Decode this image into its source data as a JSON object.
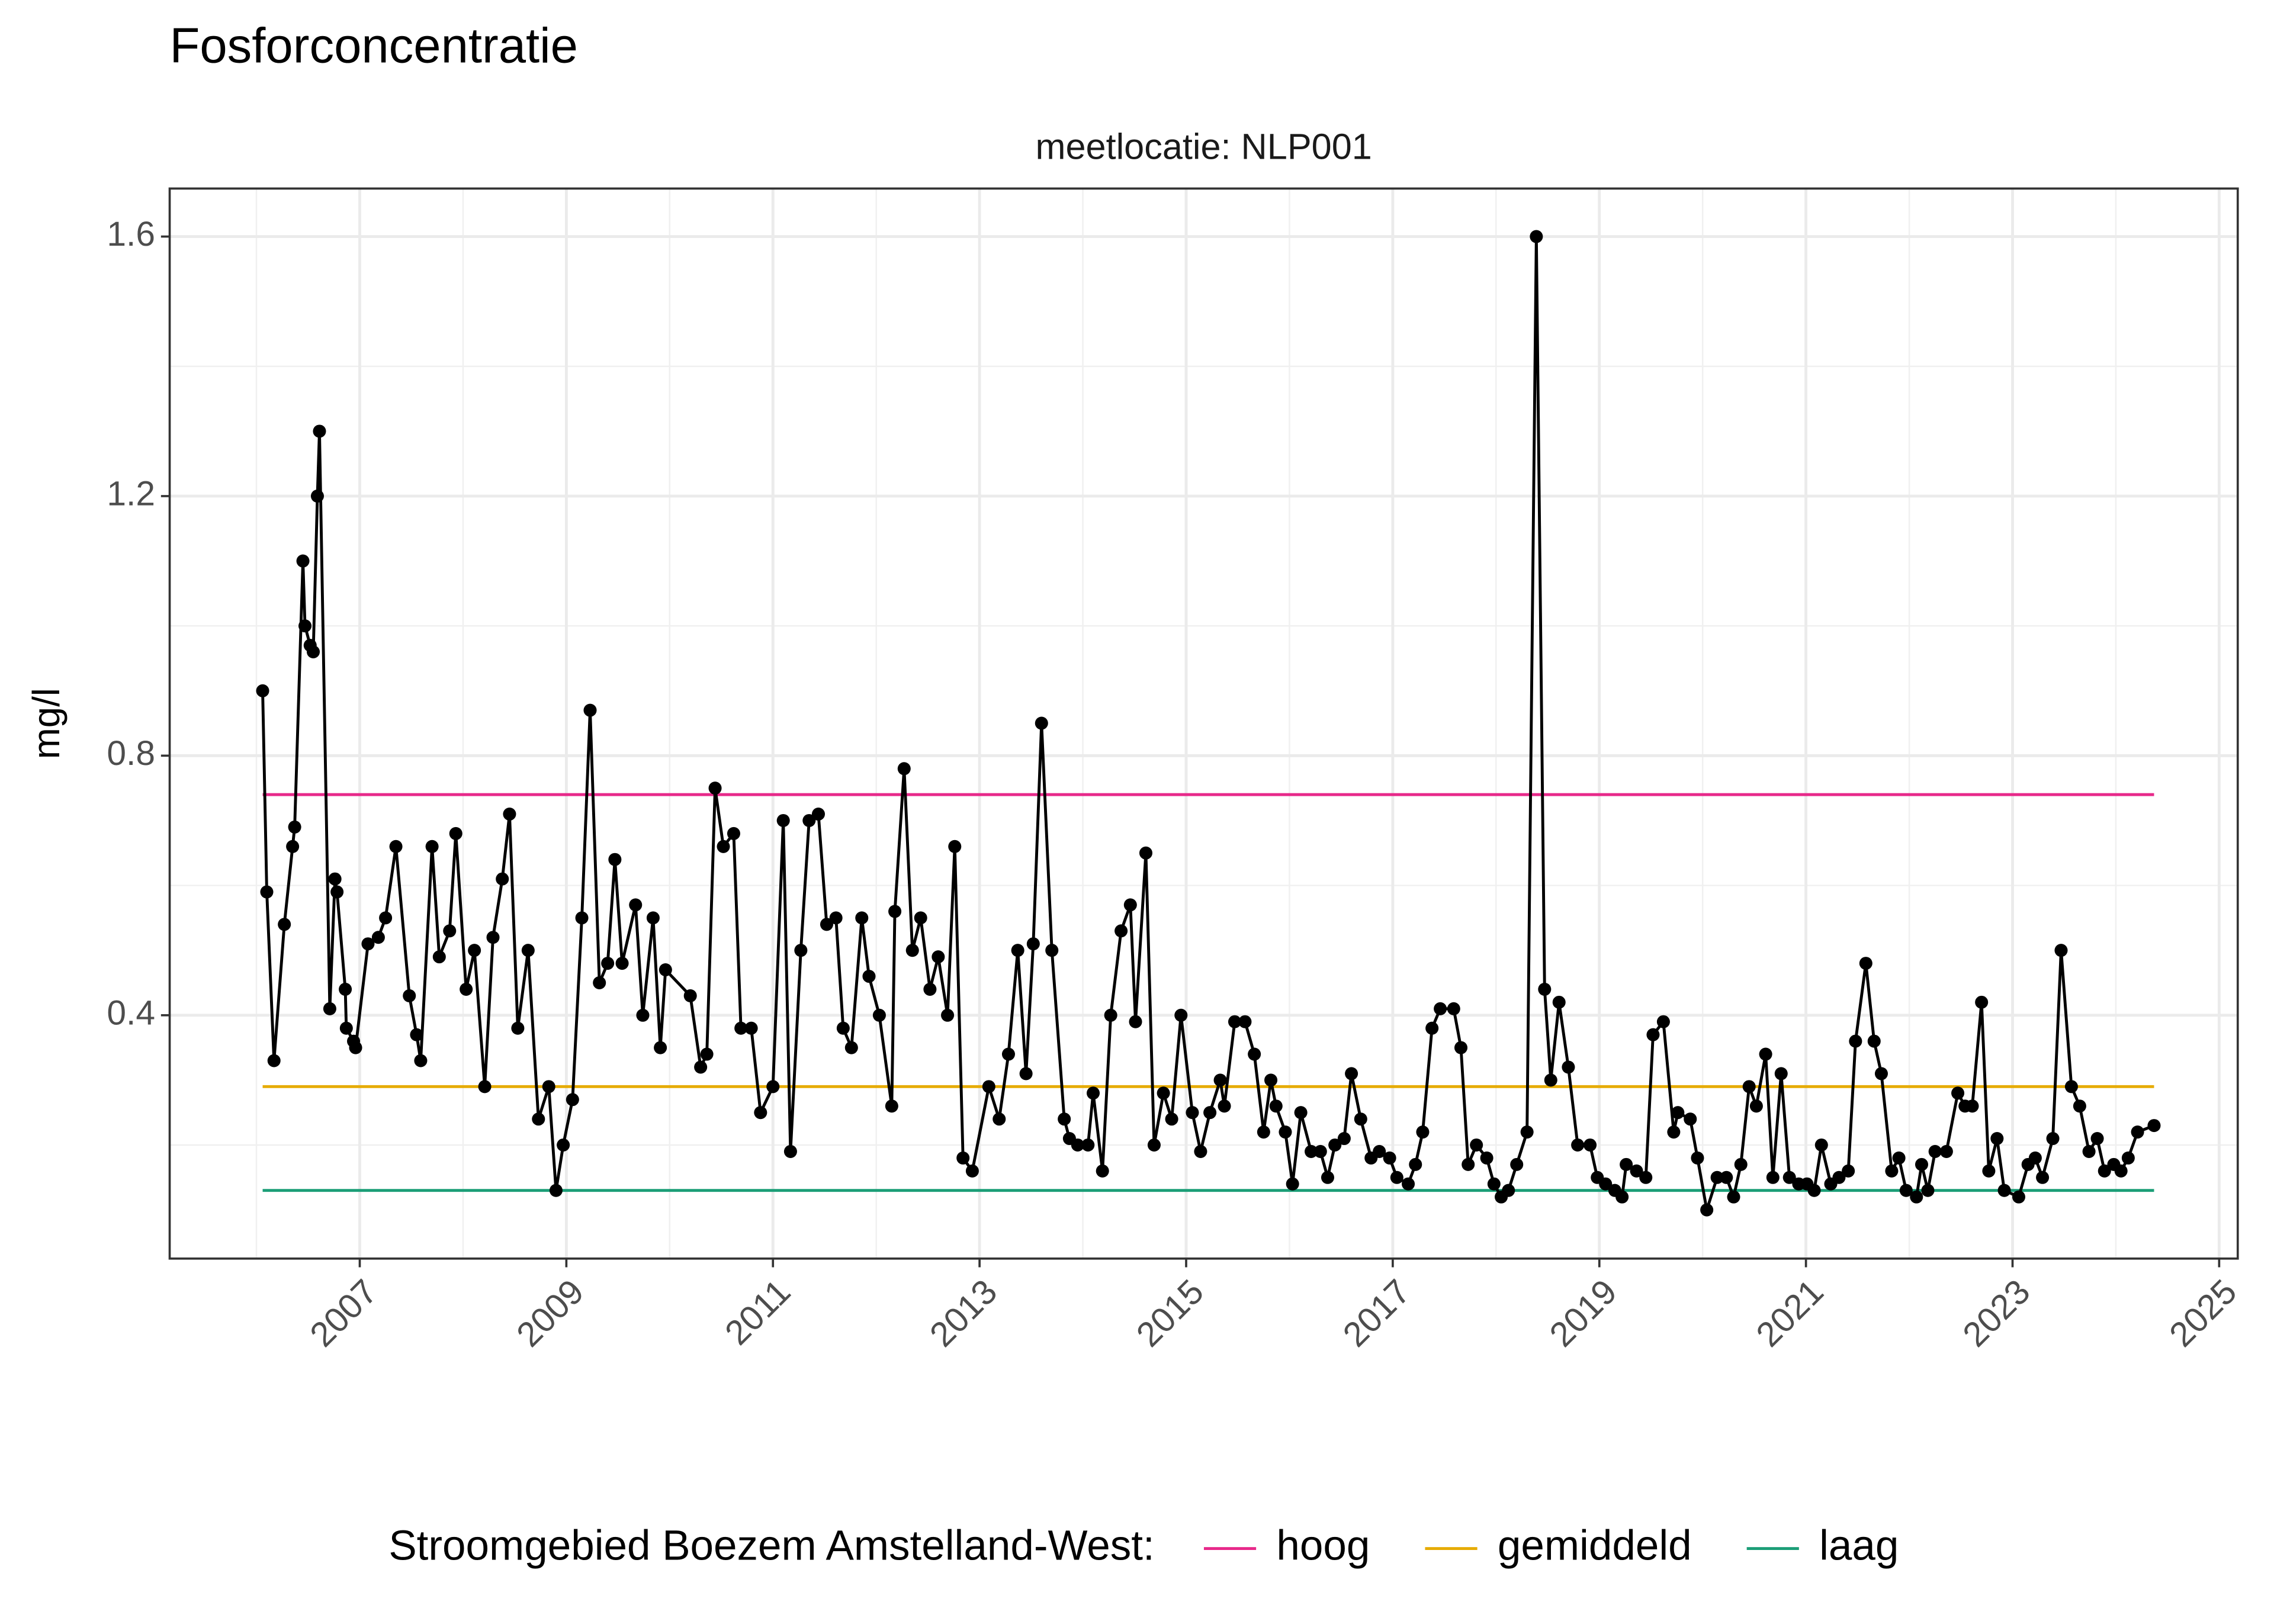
{
  "chart_data": {
    "type": "line",
    "title": "Fosforconcentratie",
    "facet": "meetlocatie: NLP001",
    "y_label": "mg/l",
    "legend_title": "Stroomgebied Boezem Amstelland-West:",
    "legend_position": "bottom",
    "grid": true,
    "xlim": [
      2005.16,
      2025.18
    ],
    "ylim": [
      0.025,
      1.674
    ],
    "xticks": [
      2007,
      2009,
      2011,
      2013,
      2015,
      2017,
      2019,
      2021,
      2023,
      2025
    ],
    "yticks": [
      0.4,
      0.8,
      1.2,
      1.6
    ],
    "measurements": {
      "color": "#000000",
      "x": [
        2006.06,
        2006.1,
        2006.17,
        2006.27,
        2006.35,
        2006.37,
        2006.45,
        2006.47,
        2006.52,
        2006.55,
        2006.59,
        2006.61,
        2006.71,
        2006.76,
        2006.78,
        2006.86,
        2006.87,
        2006.94,
        2006.96,
        2007.08,
        2007.18,
        2007.25,
        2007.35,
        2007.48,
        2007.55,
        2007.59,
        2007.7,
        2007.77,
        2007.87,
        2007.93,
        2008.03,
        2008.11,
        2008.21,
        2008.29,
        2008.38,
        2008.45,
        2008.53,
        2008.63,
        2008.73,
        2008.83,
        2008.9,
        2008.97,
        2009.06,
        2009.15,
        2009.23,
        2009.32,
        2009.4,
        2009.47,
        2009.54,
        2009.67,
        2009.74,
        2009.84,
        2009.91,
        2009.96,
        2010.2,
        2010.3,
        2010.36,
        2010.44,
        2010.52,
        2010.62,
        2010.69,
        2010.79,
        2010.88,
        2011.0,
        2011.1,
        2011.17,
        2011.27,
        2011.35,
        2011.44,
        2011.52,
        2011.61,
        2011.68,
        2011.76,
        2011.86,
        2011.93,
        2012.03,
        2012.15,
        2012.18,
        2012.27,
        2012.35,
        2012.43,
        2012.52,
        2012.6,
        2012.69,
        2012.76,
        2012.84,
        2012.93,
        2013.09,
        2013.19,
        2013.28,
        2013.37,
        2013.45,
        2013.52,
        2013.6,
        2013.7,
        2013.82,
        2013.87,
        2013.95,
        2014.05,
        2014.1,
        2014.19,
        2014.27,
        2014.37,
        2014.46,
        2014.51,
        2014.61,
        2014.69,
        2014.78,
        2014.86,
        2014.95,
        2015.06,
        2015.14,
        2015.23,
        2015.33,
        2015.37,
        2015.47,
        2015.57,
        2015.66,
        2015.75,
        2015.82,
        2015.87,
        2015.96,
        2016.03,
        2016.11,
        2016.21,
        2016.3,
        2016.37,
        2016.44,
        2016.53,
        2016.6,
        2016.69,
        2016.79,
        2016.87,
        2016.97,
        2017.04,
        2017.15,
        2017.22,
        2017.29,
        2017.38,
        2017.46,
        2017.59,
        2017.66,
        2017.73,
        2017.81,
        2017.91,
        2017.98,
        2018.05,
        2018.12,
        2018.2,
        2018.3,
        2018.39,
        2018.47,
        2018.53,
        2018.61,
        2018.7,
        2018.79,
        2018.91,
        2018.98,
        2019.06,
        2019.15,
        2019.22,
        2019.26,
        2019.36,
        2019.45,
        2019.52,
        2019.62,
        2019.72,
        2019.76,
        2019.88,
        2019.95,
        2020.04,
        2020.14,
        2020.23,
        2020.3,
        2020.37,
        2020.45,
        2020.52,
        2020.61,
        2020.68,
        2020.76,
        2020.84,
        2020.93,
        2021.01,
        2021.08,
        2021.15,
        2021.24,
        2021.32,
        2021.41,
        2021.48,
        2021.58,
        2021.66,
        2021.73,
        2021.83,
        2021.9,
        2021.97,
        2022.07,
        2022.12,
        2022.18,
        2022.25,
        2022.36,
        2022.47,
        2022.54,
        2022.61,
        2022.7,
        2022.77,
        2022.85,
        2022.92,
        2023.06,
        2023.15,
        2023.22,
        2023.29,
        2023.39,
        2023.47,
        2023.57,
        2023.65,
        2023.74,
        2023.82,
        2023.89,
        2023.98,
        2024.05,
        2024.12,
        2024.21,
        2024.37
      ],
      "values": [
        0.9,
        0.59,
        0.33,
        0.54,
        0.66,
        0.69,
        1.1,
        1.0,
        0.97,
        0.96,
        1.2,
        1.3,
        0.41,
        0.61,
        0.59,
        0.44,
        0.38,
        0.36,
        0.35,
        0.51,
        0.52,
        0.55,
        0.66,
        0.43,
        0.37,
        0.33,
        0.66,
        0.49,
        0.53,
        0.68,
        0.44,
        0.5,
        0.29,
        0.52,
        0.61,
        0.71,
        0.38,
        0.5,
        0.24,
        0.29,
        0.13,
        0.2,
        0.27,
        0.55,
        0.87,
        0.45,
        0.48,
        0.64,
        0.48,
        0.57,
        0.4,
        0.55,
        0.35,
        0.47,
        0.43,
        0.32,
        0.34,
        0.75,
        0.66,
        0.68,
        0.38,
        0.38,
        0.25,
        0.29,
        0.7,
        0.19,
        0.5,
        0.7,
        0.71,
        0.54,
        0.55,
        0.38,
        0.35,
        0.55,
        0.46,
        0.4,
        0.26,
        0.56,
        0.78,
        0.5,
        0.55,
        0.44,
        0.49,
        0.4,
        0.66,
        0.18,
        0.16,
        0.29,
        0.24,
        0.34,
        0.5,
        0.31,
        0.51,
        0.85,
        0.5,
        0.24,
        0.21,
        0.2,
        0.2,
        0.28,
        0.16,
        0.4,
        0.53,
        0.57,
        0.39,
        0.65,
        0.2,
        0.28,
        0.24,
        0.4,
        0.25,
        0.19,
        0.25,
        0.3,
        0.26,
        0.39,
        0.39,
        0.34,
        0.22,
        0.3,
        0.26,
        0.22,
        0.14,
        0.25,
        0.19,
        0.19,
        0.15,
        0.2,
        0.21,
        0.31,
        0.24,
        0.18,
        0.19,
        0.18,
        0.15,
        0.14,
        0.17,
        0.22,
        0.38,
        0.41,
        0.41,
        0.35,
        0.17,
        0.2,
        0.18,
        0.14,
        0.12,
        0.13,
        0.17,
        0.22,
        1.6,
        0.44,
        0.3,
        0.42,
        0.32,
        0.2,
        0.2,
        0.15,
        0.14,
        0.13,
        0.12,
        0.17,
        0.16,
        0.15,
        0.37,
        0.39,
        0.22,
        0.25,
        0.24,
        0.18,
        0.1,
        0.15,
        0.15,
        0.12,
        0.17,
        0.29,
        0.26,
        0.34,
        0.15,
        0.31,
        0.15,
        0.14,
        0.14,
        0.13,
        0.2,
        0.14,
        0.15,
        0.16,
        0.36,
        0.48,
        0.36,
        0.31,
        0.16,
        0.18,
        0.13,
        0.12,
        0.17,
        0.13,
        0.19,
        0.19,
        0.28,
        0.26,
        0.26,
        0.42,
        0.16,
        0.21,
        0.13,
        0.12,
        0.17,
        0.18,
        0.15,
        0.21,
        0.5,
        0.29,
        0.26,
        0.19,
        0.21,
        0.16,
        0.17,
        0.16,
        0.18,
        0.22,
        0.23
      ]
    },
    "series": [
      {
        "name": "hoog",
        "color": "#e7298a",
        "x": [
          2006.06,
          2024.37
        ],
        "values": [
          0.74,
          0.74
        ]
      },
      {
        "name": "gemiddeld",
        "color": "#e6ab02",
        "x": [
          2006.06,
          2024.37
        ],
        "values": [
          0.29,
          0.29
        ]
      },
      {
        "name": "laag",
        "color": "#1b9e77",
        "x": [
          2006.06,
          2024.37
        ],
        "values": [
          0.13,
          0.13
        ]
      }
    ]
  }
}
